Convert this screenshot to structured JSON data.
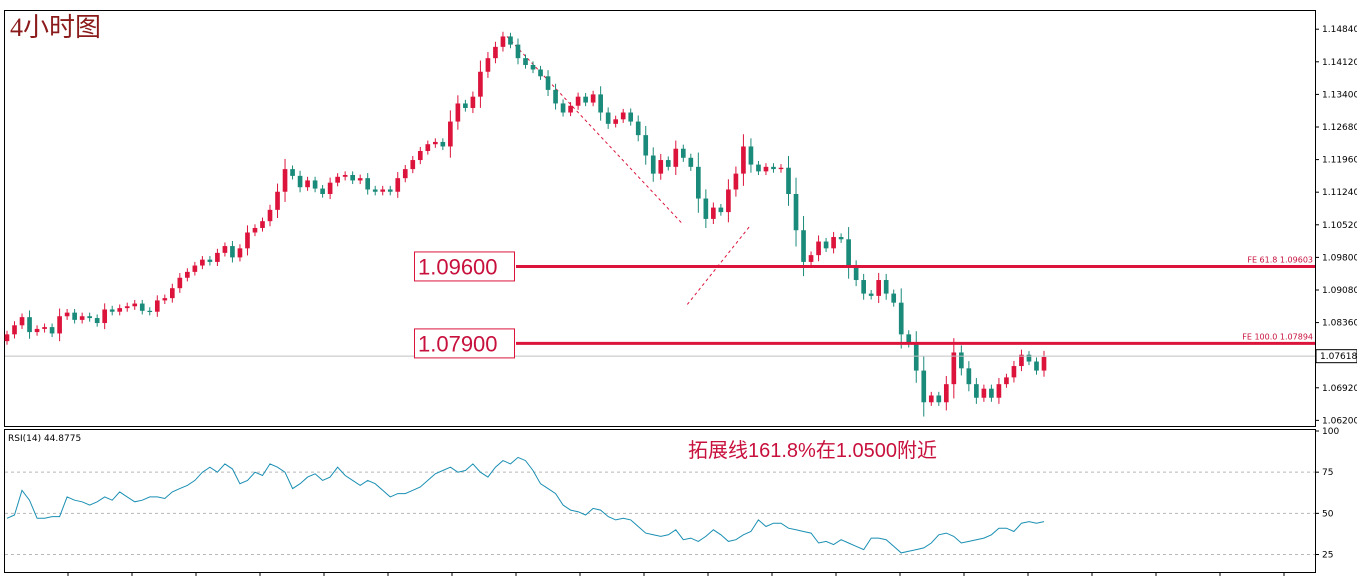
{
  "chart_data": [
    {
      "type": "candlestick",
      "title": "4小时图",
      "ylim": [
        1.0612,
        1.1522
      ],
      "y_ticks": [
        "1.14840",
        "1.14120",
        "1.13400",
        "1.12680",
        "1.11960",
        "1.11240",
        "1.10520",
        "1.09800",
        "1.09080",
        "1.08360",
        "1.07640",
        "1.06920",
        "1.06200"
      ],
      "current_price": "1.07618",
      "levels": [
        {
          "label": "1.09600",
          "value": 1.096,
          "fib": "FE 61.8  1.09603"
        },
        {
          "label": "1.07900",
          "value": 1.079,
          "fib": "FE 100.0  1.07894"
        }
      ],
      "fib_projection": [
        [
          1.1468,
          1.1052
        ],
        [
          1.0876,
          1.0789
        ],
        [
          1.0959,
          1.0528
        ]
      ],
      "closes": [
        1.081,
        1.083,
        1.0848,
        1.0815,
        1.0822,
        1.0826,
        1.0812,
        1.085,
        1.0858,
        1.0842,
        1.085,
        1.0846,
        1.0835,
        1.0865,
        1.086,
        1.0868,
        1.0872,
        1.0878,
        1.0862,
        1.086,
        1.0885,
        1.089,
        1.0912,
        1.0935,
        1.0948,
        1.0962,
        1.0975,
        1.097,
        1.099,
        1.1005,
        1.098,
        1.1,
        1.1035,
        1.1045,
        1.106,
        1.1085,
        1.1125,
        1.1175,
        1.116,
        1.1135,
        1.115,
        1.1132,
        1.112,
        1.1145,
        1.1158,
        1.1162,
        1.115,
        1.1155,
        1.113,
        1.1125,
        1.113,
        1.1125,
        1.1155,
        1.1175,
        1.1195,
        1.1215,
        1.123,
        1.1235,
        1.1225,
        1.128,
        1.132,
        1.131,
        1.1335,
        1.139,
        1.142,
        1.1445,
        1.1468,
        1.145,
        1.142,
        1.1405,
        1.1395,
        1.138,
        1.135,
        1.132,
        1.13,
        1.1315,
        1.1335,
        1.1322,
        1.134,
        1.13,
        1.1275,
        1.1285,
        1.13,
        1.128,
        1.125,
        1.1205,
        1.1165,
        1.1195,
        1.118,
        1.122,
        1.12,
        1.118,
        1.111,
        1.1065,
        1.109,
        1.108,
        1.113,
        1.1165,
        1.1225,
        1.1185,
        1.117,
        1.118,
        1.1175,
        1.1178,
        1.112,
        1.104,
        1.097,
        1.0985,
        1.1015,
        1.1,
        1.1025,
        1.102,
        1.096,
        1.093,
        1.09,
        1.0895,
        1.093,
        1.09,
        1.088,
        1.081,
        1.079,
        1.073,
        1.066,
        1.0675,
        1.066,
        1.07,
        1.077,
        1.0735,
        1.07,
        1.067,
        1.069,
        1.067,
        1.07,
        1.0715,
        1.074,
        1.0765,
        1.075,
        1.073,
        1.076
      ]
    },
    {
      "type": "line",
      "title": "RSI(14) 44.8775",
      "ylim": [
        15,
        100
      ],
      "y_ticks": [
        "100",
        "75",
        "50",
        "25"
      ],
      "annotation": "拓展线161.8%在1.0500附近",
      "values": [
        47,
        49,
        64,
        58,
        47,
        47,
        48,
        48,
        60,
        58,
        57,
        55,
        57,
        60,
        58,
        63,
        60,
        57,
        58,
        60,
        60,
        59,
        63,
        65,
        67,
        70,
        75,
        78,
        75,
        80,
        77,
        68,
        70,
        75,
        73,
        80,
        78,
        75,
        65,
        68,
        72,
        74,
        70,
        72,
        78,
        73,
        70,
        67,
        70,
        68,
        64,
        60,
        62,
        62,
        64,
        66,
        70,
        74,
        76,
        78,
        75,
        76,
        80,
        75,
        72,
        78,
        82,
        80,
        84,
        82,
        76,
        68,
        65,
        62,
        55,
        52,
        51,
        49,
        53,
        52,
        48,
        46,
        47,
        46,
        42,
        38,
        37,
        36,
        37,
        40,
        34,
        35,
        33,
        36,
        40,
        37,
        33,
        34,
        37,
        39,
        46,
        42,
        44,
        44,
        41,
        40,
        39,
        38,
        32,
        33,
        31,
        34,
        32,
        30,
        28,
        35,
        35,
        34,
        30,
        26,
        27,
        28,
        29,
        32,
        37,
        38,
        36,
        32,
        33,
        34,
        35,
        37,
        41,
        41,
        39,
        44,
        45,
        44,
        45
      ]
    }
  ]
}
